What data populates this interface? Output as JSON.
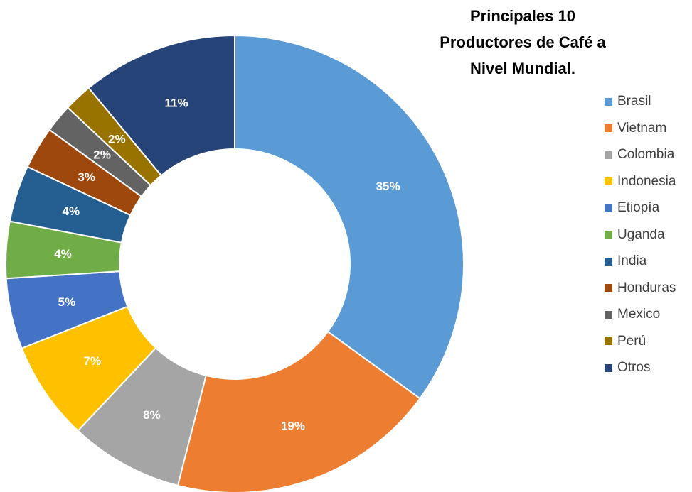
{
  "chart_data": {
    "type": "pie",
    "title": "Principales 10 Productores de Café a Nivel Mundial.",
    "title_lines": [
      "Principales 10",
      "Productores de Café a",
      "Nivel Mundial."
    ],
    "categories": [
      "Brasil",
      "Vietnam",
      "Colombia",
      "Indonesia",
      "Etiopía",
      "Uganda",
      "India",
      "Honduras",
      "Mexico",
      "Perú",
      "Otros"
    ],
    "values": [
      35,
      19,
      8,
      7,
      5,
      4,
      4,
      3,
      2,
      2,
      11
    ],
    "value_labels": [
      "35%",
      "19%",
      "8%",
      "7%",
      "5%",
      "4%",
      "4%",
      "3%",
      "2%",
      "2%",
      "11%"
    ],
    "colors": [
      "#5b9bd5",
      "#ed7d31",
      "#a5a5a5",
      "#ffc000",
      "#4472c4",
      "#70ad47",
      "#255e91",
      "#9e480e",
      "#636363",
      "#997300",
      "#264478"
    ],
    "legend_position": "right"
  }
}
